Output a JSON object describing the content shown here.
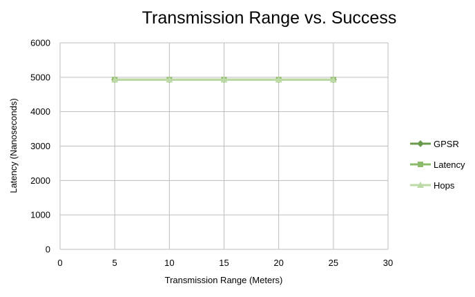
{
  "chart_data": {
    "type": "line",
    "title": "Transmission Range vs. Success",
    "xlabel": "Transmission Range (Meters)",
    "ylabel": "Latency (Nanoseconds)",
    "xlim": [
      0,
      30
    ],
    "ylim": [
      0,
      6000
    ],
    "xticks": [
      0,
      5,
      10,
      15,
      20,
      25,
      30
    ],
    "yticks": [
      0,
      1000,
      2000,
      3000,
      4000,
      5000,
      6000
    ],
    "grid": true,
    "legend_position": "right",
    "x": [
      5,
      10,
      15,
      20,
      25
    ],
    "series": [
      {
        "name": "GPSR",
        "values": [
          4930,
          4930,
          4930,
          4930,
          4930
        ],
        "color": "#6a9a4c",
        "marker": "diamond"
      },
      {
        "name": "Latency",
        "values": [
          4930,
          4930,
          4930,
          4930,
          4930
        ],
        "color": "#8cbc6a",
        "marker": "square"
      },
      {
        "name": "Hops",
        "values": [
          4930,
          4930,
          4930,
          4930,
          4930
        ],
        "color": "#bcd9a6",
        "marker": "triangle"
      }
    ]
  }
}
